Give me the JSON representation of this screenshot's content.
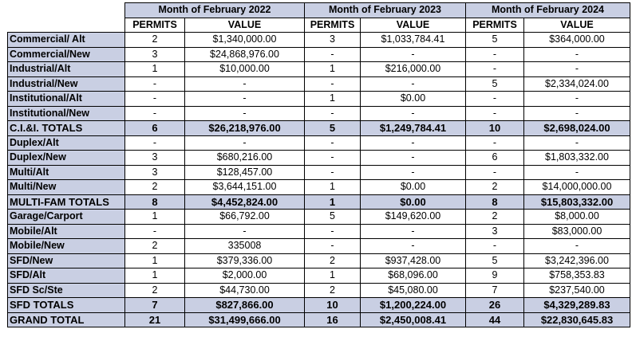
{
  "months": [
    "Month of February 2022",
    "Month of February 2023",
    "Month of February 2024"
  ],
  "col_labels": {
    "permits": "PERMITS",
    "value": "VALUE"
  },
  "rows": [
    {
      "label": "Commercial/ Alt",
      "p1": "2",
      "v1": "$1,340,000.00",
      "p2": "3",
      "v2": "$1,033,784.41",
      "p3": "5",
      "v3": "$364,000.00",
      "kind": "normal"
    },
    {
      "label": "Commercial/New",
      "p1": "3",
      "v1": "$24,868,976.00",
      "p2": "-",
      "v2": "-",
      "p3": "-",
      "v3": "-",
      "kind": "normal"
    },
    {
      "label": "Industrial/Alt",
      "p1": "1",
      "v1": "$10,000.00",
      "p2": "1",
      "v2": "$216,000.00",
      "p3": "-",
      "v3": "-",
      "kind": "normal"
    },
    {
      "label": "Industrial/New",
      "p1": "-",
      "v1": "-",
      "p2": "-",
      "v2": "-",
      "p3": "5",
      "v3": "$2,334,024.00",
      "kind": "normal"
    },
    {
      "label": "Institutional/Alt",
      "p1": "-",
      "v1": "-",
      "p2": "1",
      "v2": "$0.00",
      "p3": "-",
      "v3": "-",
      "kind": "normal"
    },
    {
      "label": "Institutional/New",
      "p1": "-",
      "v1": "-",
      "p2": "-",
      "v2": "-",
      "p3": "-",
      "v3": "-",
      "kind": "normal"
    },
    {
      "label": "C.I.&I. TOTALS",
      "p1": "6",
      "v1": "$26,218,976.00",
      "p2": "5",
      "v2": "$1,249,784.41",
      "p3": "10",
      "v3": "$2,698,024.00",
      "kind": "total"
    },
    {
      "label": "Duplex/Alt",
      "p1": "-",
      "v1": "-",
      "p2": "-",
      "v2": "-",
      "p3": "-",
      "v3": "-",
      "kind": "normal"
    },
    {
      "label": "Duplex/New",
      "p1": "3",
      "v1": "$680,216.00",
      "p2": "-",
      "v2": "-",
      "p3": "6",
      "v3": "$1,803,332.00",
      "kind": "normal"
    },
    {
      "label": "Multi/Alt",
      "p1": "3",
      "v1": "$128,457.00",
      "p2": "-",
      "v2": "-",
      "p3": "-",
      "v3": "-",
      "kind": "normal"
    },
    {
      "label": "Multi/New",
      "p1": "2",
      "v1": "$3,644,151.00",
      "p2": "1",
      "v2": "$0.00",
      "p3": "2",
      "v3": "$14,000,000.00",
      "kind": "normal"
    },
    {
      "label": "MULTI-FAM TOTALS",
      "p1": "8",
      "v1": "$4,452,824.00",
      "p2": "1",
      "v2": "$0.00",
      "p3": "8",
      "v3": "$15,803,332.00",
      "kind": "total"
    },
    {
      "label": "Garage/Carport",
      "p1": "1",
      "v1": "$66,792.00",
      "p2": "5",
      "v2": "$149,620.00",
      "p3": "2",
      "v3": "$8,000.00",
      "kind": "normal"
    },
    {
      "label": "Mobile/Alt",
      "p1": "-",
      "v1": "-",
      "p2": "-",
      "v2": "-",
      "p3": "3",
      "v3": "$83,000.00",
      "kind": "normal"
    },
    {
      "label": "Mobile/New",
      "p1": "2",
      "v1": "335008",
      "p2": "-",
      "v2": "-",
      "p3": "-",
      "v3": "-",
      "kind": "normal"
    },
    {
      "label": "SFD/New",
      "p1": "1",
      "v1": "$379,336.00",
      "p2": "2",
      "v2": "$937,428.00",
      "p3": "5",
      "v3": "$3,242,396.00",
      "kind": "normal"
    },
    {
      "label": "SFD/Alt",
      "p1": "1",
      "v1": "$2,000.00",
      "p2": "1",
      "v2": "$68,096.00",
      "p3": "9",
      "v3": "$758,353.83",
      "kind": "normal"
    },
    {
      "label": "SFD Sc/Ste",
      "p1": "2",
      "v1": "$44,730.00",
      "p2": "2",
      "v2": "$45,080.00",
      "p3": "7",
      "v3": "$237,540.00",
      "kind": "normal"
    },
    {
      "label": "SFD TOTALS",
      "p1": "7",
      "v1": "$827,866.00",
      "p2": "10",
      "v2": "$1,200,224.00",
      "p3": "26",
      "v3": "$4,329,289.83",
      "kind": "total"
    },
    {
      "label": "GRAND TOTAL",
      "p1": "21",
      "v1": "$31,499,666.00",
      "p2": "16",
      "v2": "$2,450,008.41",
      "p3": "44",
      "v3": "$22,830,645.83",
      "kind": "grand"
    }
  ]
}
